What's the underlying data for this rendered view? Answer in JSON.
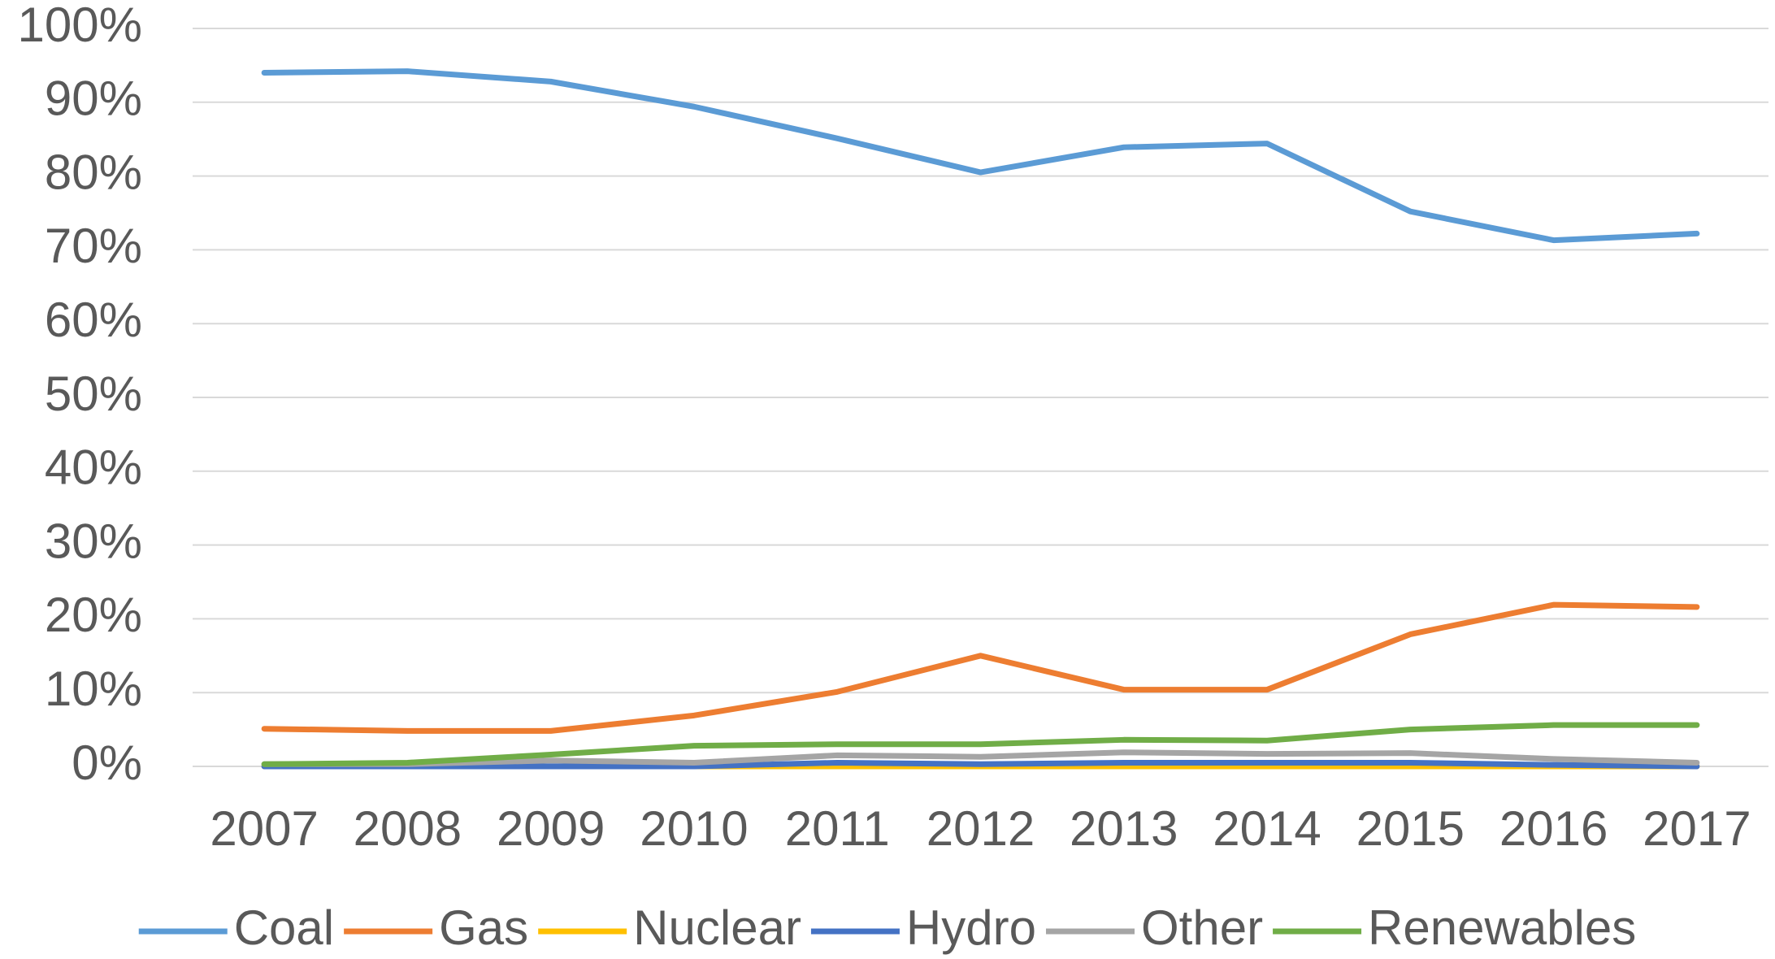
{
  "chart_data": {
    "type": "line",
    "categories": [
      "2007",
      "2008",
      "2009",
      "2010",
      "2011",
      "2012",
      "2013",
      "2014",
      "2015",
      "2016",
      "2017"
    ],
    "series": [
      {
        "name": "Coal",
        "color": "#5b9bd5",
        "values": [
          94.0,
          94.2,
          92.8,
          89.4,
          85.1,
          80.5,
          83.9,
          84.4,
          75.2,
          71.3,
          72.2
        ]
      },
      {
        "name": "Gas",
        "color": "#ed7d31",
        "values": [
          5.1,
          4.8,
          4.8,
          6.9,
          10.1,
          15.0,
          10.4,
          10.4,
          17.9,
          21.9,
          21.6
        ]
      },
      {
        "name": "Nuclear",
        "color": "#ffc000",
        "values": [
          0,
          0,
          0,
          0,
          0,
          0,
          0,
          0,
          0,
          0,
          0
        ]
      },
      {
        "name": "Hydro",
        "color": "#4472c4",
        "values": [
          0,
          0,
          0,
          0,
          0.5,
          0.3,
          0.5,
          0.5,
          0.5,
          0.2,
          0
        ]
      },
      {
        "name": "Other",
        "color": "#a5a5a5",
        "values": [
          0.3,
          0.3,
          0.8,
          0.5,
          1.5,
          1.3,
          1.9,
          1.7,
          1.8,
          1.0,
          0.5
        ]
      },
      {
        "name": "Renewables",
        "color": "#70ad47",
        "values": [
          0.3,
          0.5,
          1.6,
          2.8,
          3.0,
          3.0,
          3.6,
          3.5,
          5.0,
          5.6,
          5.6
        ]
      }
    ],
    "ylim": [
      0,
      100
    ],
    "yticks": [
      {
        "value": 0,
        "label": "0%"
      },
      {
        "value": 10,
        "label": "10%"
      },
      {
        "value": 20,
        "label": "20%"
      },
      {
        "value": 30,
        "label": "30%"
      },
      {
        "value": 40,
        "label": "40%"
      },
      {
        "value": 50,
        "label": "50%"
      },
      {
        "value": 60,
        "label": "60%"
      },
      {
        "value": 70,
        "label": "70%"
      },
      {
        "value": 80,
        "label": "80%"
      },
      {
        "value": 90,
        "label": "90%"
      },
      {
        "value": 100,
        "label": "100%"
      }
    ],
    "grid": true,
    "legend": "bottom"
  }
}
